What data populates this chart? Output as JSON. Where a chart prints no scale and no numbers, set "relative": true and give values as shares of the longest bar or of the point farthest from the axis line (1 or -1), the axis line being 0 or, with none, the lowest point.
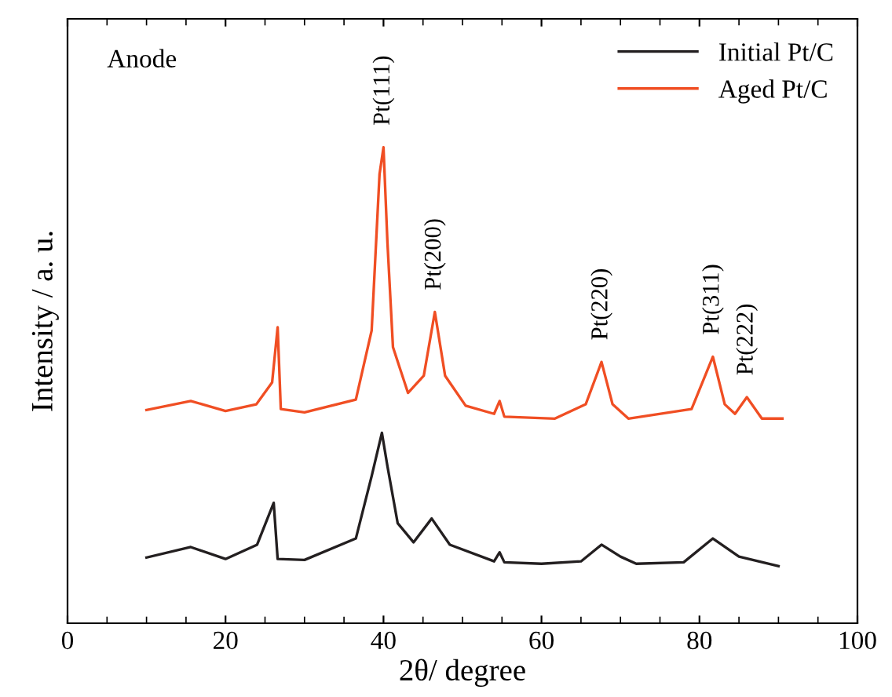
{
  "chart_data": {
    "type": "line",
    "relative": true,
    "xlabel": "2θ/ degree",
    "ylabel": "Intensity / a. u.",
    "xlim": [
      0,
      100
    ],
    "xticks": [
      0,
      20,
      40,
      60,
      80,
      100
    ],
    "legend": "top right",
    "grid": false,
    "marker": "none",
    "line_style": "solid",
    "annotations": [
      "Anode",
      {
        "text": "Pt(111)",
        "x": 40,
        "y": 1.0
      },
      {
        "text": "Pt(200)",
        "x": 46.5,
        "y": 0.654
      },
      {
        "text": "Pt(220)",
        "x": 67.6,
        "y": 0.549
      },
      {
        "text": "Pt(311)",
        "x": 81.7,
        "y": 0.56
      },
      {
        "text": "Pt(222)",
        "x": 86,
        "y": 0.475
      }
    ],
    "series": [
      {
        "name": "Initial Pt/C",
        "color": "#231f20",
        "x": [
          10,
          15.6,
          20,
          24,
          26.1,
          26.6,
          30,
          36.5,
          38.5,
          39.8,
          40.5,
          41.8,
          43.8,
          46.1,
          48.4,
          54,
          54.7,
          55.3,
          60,
          65,
          67.6,
          70,
          72,
          78,
          81.7,
          85,
          90
        ],
        "values": [
          0.138,
          0.16,
          0.135,
          0.165,
          0.253,
          0.135,
          0.133,
          0.178,
          0.309,
          0.4,
          0.33,
          0.21,
          0.17,
          0.22,
          0.165,
          0.13,
          0.149,
          0.128,
          0.125,
          0.13,
          0.165,
          0.14,
          0.125,
          0.128,
          0.178,
          0.14,
          0.12
        ]
      },
      {
        "name": "Aged Pt/C",
        "color": "#f04e23",
        "x": [
          10,
          15.6,
          20,
          23.9,
          25.9,
          26.6,
          27,
          30,
          36.5,
          38.5,
          39.5,
          40,
          40.5,
          41.2,
          43.1,
          45.1,
          46.5,
          47.8,
          50.4,
          54,
          54.7,
          55.3,
          61.7,
          65.6,
          67.6,
          69,
          71,
          79,
          81.7,
          83.2,
          84.5,
          86,
          87.9,
          90.5
        ],
        "values": [
          0.448,
          0.467,
          0.446,
          0.46,
          0.506,
          0.622,
          0.45,
          0.443,
          0.47,
          0.615,
          0.944,
          1.0,
          0.8,
          0.58,
          0.484,
          0.52,
          0.654,
          0.52,
          0.457,
          0.44,
          0.467,
          0.434,
          0.43,
          0.46,
          0.549,
          0.46,
          0.43,
          0.45,
          0.56,
          0.46,
          0.44,
          0.475,
          0.43,
          0.43
        ]
      }
    ]
  }
}
